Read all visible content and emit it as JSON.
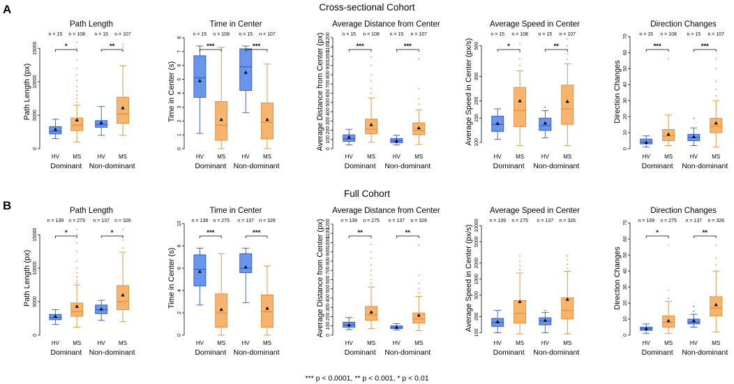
{
  "colors": {
    "hv_fill": "#6A95EC",
    "hv_stroke": "#2F56C4",
    "ms_fill": "#F7B46E",
    "ms_stroke": "#E48A2F",
    "text": "#000000"
  },
  "figure": {
    "rows": [
      {
        "letter": "A",
        "title": "Cross-sectional Cohort"
      },
      {
        "letter": "B",
        "title": "Full Cohort"
      }
    ],
    "footnote": "*** p < 0.0001, ** p < 0.001, * p < 0.01"
  },
  "chart_data": [
    {
      "type": "box",
      "row": 0,
      "col": 0,
      "title": "Path Length",
      "ylabel": "Path Length (px)",
      "scale": "linear",
      "ylim": [
        0,
        17000
      ],
      "yticks": [
        0,
        5000,
        10000,
        15000
      ],
      "ytick_labels": [
        "0",
        "5000",
        "10000",
        "15000"
      ],
      "groups": [
        "Dominant",
        "Non-dominant"
      ],
      "subgroups": [
        "HV",
        "MS"
      ],
      "n": [
        "n = 15",
        "n = 108",
        "n = 15",
        "n = 107"
      ],
      "significance": [
        "*",
        "**"
      ],
      "boxes": [
        {
          "min": 1500,
          "q1": 2200,
          "median": 2600,
          "q3": 3300,
          "max": 4400,
          "mean": 2900,
          "outliers": []
        },
        {
          "min": 1000,
          "q1": 2700,
          "median": 3500,
          "q3": 4600,
          "max": 6500,
          "mean": 4300,
          "outliers": [
            7000,
            7500,
            8000,
            8600,
            9300,
            10200,
            11000,
            12000,
            13300,
            15000,
            15900
          ]
        },
        {
          "min": 2000,
          "q1": 3200,
          "median": 3600,
          "q3": 4200,
          "max": 6300,
          "mean": 3900,
          "outliers": []
        },
        {
          "min": 2000,
          "q1": 3800,
          "median": 5200,
          "q3": 7700,
          "max": 12400,
          "mean": 6100,
          "outliers": [
            14600,
            15200,
            15600
          ]
        }
      ]
    },
    {
      "type": "box",
      "row": 0,
      "col": 1,
      "title": "Time in Center",
      "ylabel": "Time in Center (s)",
      "scale": "linear",
      "ylim": [
        0,
        8.2
      ],
      "yticks": [
        0,
        1,
        2,
        3,
        4,
        5,
        6,
        7,
        8
      ],
      "ytick_labels": [
        "0",
        "1",
        "2",
        "3",
        "4",
        "5",
        "6",
        "7",
        "8"
      ],
      "groups": [
        "Dominant",
        "Non-dominant"
      ],
      "subgroups": [
        "HV",
        "MS"
      ],
      "n": [
        "n = 15",
        "n = 108",
        "n = 15",
        "n = 107"
      ],
      "significance": [
        "***",
        "***"
      ],
      "boxes": [
        {
          "min": 1.1,
          "q1": 3.7,
          "median": 5.1,
          "q3": 6.7,
          "max": 7.4,
          "mean": 4.9,
          "outliers": []
        },
        {
          "min": 0,
          "q1": 0.6,
          "median": 1.7,
          "q3": 3.4,
          "max": 7.3,
          "mean": 2.1,
          "outliers": []
        },
        {
          "min": 2.6,
          "q1": 4.2,
          "median": 5.9,
          "q3": 7.2,
          "max": 7.4,
          "mean": 5.5,
          "outliers": []
        },
        {
          "min": 0,
          "q1": 0.7,
          "median": 1.9,
          "q3": 3.3,
          "max": 6.1,
          "mean": 2.1,
          "outliers": []
        }
      ]
    },
    {
      "type": "box",
      "row": 0,
      "col": 2,
      "title": "Average Distance from Center",
      "ylabel": "Average Distance from Center (px)",
      "scale": "linear",
      "ylim": [
        0,
        1230
      ],
      "yticks": [
        0,
        100,
        200,
        300,
        400,
        500,
        600,
        700,
        800,
        900,
        1000,
        1100,
        1200
      ],
      "ytick_labels": [
        "0",
        "100",
        "200",
        "300",
        "400",
        "500",
        "600",
        "700",
        "800",
        "900",
        "1000",
        "1100",
        "1200"
      ],
      "groups": [
        "Dominant",
        "Non-dominant"
      ],
      "subgroups": [
        "HV",
        "MS"
      ],
      "n": [
        "n = 15",
        "n = 108",
        "n = 15",
        "n = 107"
      ],
      "significance": [
        "***",
        "***"
      ],
      "boxes": [
        {
          "min": 40,
          "q1": 80,
          "median": 105,
          "q3": 150,
          "max": 210,
          "mean": 125,
          "outliers": []
        },
        {
          "min": 70,
          "q1": 160,
          "median": 210,
          "q3": 320,
          "max": 550,
          "mean": 260,
          "outliers": [
            600,
            650,
            730,
            800,
            900,
            990
          ]
        },
        {
          "min": 40,
          "q1": 65,
          "median": 85,
          "q3": 110,
          "max": 145,
          "mean": 85,
          "outliers": []
        },
        {
          "min": 45,
          "q1": 150,
          "median": 200,
          "q3": 280,
          "max": 420,
          "mean": 225,
          "outliers": [
            480,
            540,
            650,
            970
          ]
        }
      ]
    },
    {
      "type": "box",
      "row": 0,
      "col": 3,
      "title": "Average Speed in Center",
      "ylabel": "Average Speed in Center (px/s)",
      "scale": "log",
      "ylim": [
        90,
        600
      ],
      "yticks": [
        100,
        150,
        200,
        300,
        500
      ],
      "ytick_labels": [
        "100",
        "150",
        "200",
        "300",
        "500"
      ],
      "groups": [
        "Dominant",
        "Non-dominant"
      ],
      "subgroups": [
        "HV",
        "MS"
      ],
      "n": [
        "n = 15",
        "n = 108",
        "n = 15",
        "n = 107"
      ],
      "significance": [
        "*",
        "**"
      ],
      "boxes": [
        {
          "min": 105,
          "q1": 120,
          "median": 135,
          "q3": 155,
          "max": 175,
          "mean": 137,
          "outliers": []
        },
        {
          "min": 95,
          "q1": 130,
          "median": 170,
          "q3": 250,
          "max": 330,
          "mean": 200,
          "outliers": [
            360,
            400,
            450,
            520
          ]
        },
        {
          "min": 108,
          "q1": 122,
          "median": 132,
          "q3": 150,
          "max": 170,
          "mean": 138,
          "outliers": [
            180
          ]
        },
        {
          "min": 95,
          "q1": 135,
          "median": 175,
          "q3": 260,
          "max": 370,
          "mean": 198,
          "outliers": [
            400,
            440,
            500,
            560
          ]
        }
      ]
    },
    {
      "type": "box",
      "row": 0,
      "col": 4,
      "title": "Direction Changes",
      "ylabel": "Direction Changes",
      "scale": "linear",
      "ylim": [
        0,
        71
      ],
      "yticks": [
        0,
        10,
        20,
        30,
        40,
        50,
        60,
        70
      ],
      "ytick_labels": [
        "0",
        "10",
        "20",
        "30",
        "40",
        "50",
        "60",
        "70"
      ],
      "groups": [
        "Dominant",
        "Non-dominant"
      ],
      "subgroups": [
        "HV",
        "MS"
      ],
      "n": [
        "n = 15",
        "n = 108",
        "n = 15",
        "n = 107"
      ],
      "significance": [
        "***",
        "***"
      ],
      "boxes": [
        {
          "min": 1,
          "q1": 3,
          "median": 4,
          "q3": 6,
          "max": 8,
          "mean": 4,
          "outliers": []
        },
        {
          "min": 2,
          "q1": 5,
          "median": 8,
          "q3": 12,
          "max": 21,
          "mean": 9,
          "outliers": [
            56
          ]
        },
        {
          "min": 2,
          "q1": 5,
          "median": 7,
          "q3": 9,
          "max": 13,
          "mean": 7.5,
          "outliers": [
            19
          ]
        },
        {
          "min": 1,
          "q1": 10,
          "median": 14,
          "q3": 19,
          "max": 30,
          "mean": 16,
          "outliers": [
            33,
            37,
            42,
            50,
            56
          ]
        }
      ]
    },
    {
      "type": "box",
      "row": 1,
      "col": 0,
      "title": "Path Length",
      "ylabel": "Path Length (px)",
      "scale": "linear",
      "ylim": [
        0,
        17000
      ],
      "yticks": [
        0,
        5000,
        10000,
        15000
      ],
      "ytick_labels": [
        "0",
        "5000",
        "10000",
        "15000"
      ],
      "groups": [
        "Dominant",
        "Non-dominant"
      ],
      "subgroups": [
        "HV",
        "MS"
      ],
      "n": [
        "n = 139",
        "n = 275",
        "n = 137",
        "n = 326"
      ],
      "significance": [
        "*",
        "*"
      ],
      "boxes": [
        {
          "min": 1600,
          "q1": 2300,
          "median": 2600,
          "q3": 3100,
          "max": 3800,
          "mean": 2800,
          "outliers": []
        },
        {
          "min": 1200,
          "q1": 2800,
          "median": 3500,
          "q3": 4800,
          "max": 7500,
          "mean": 4300,
          "outliers": [
            7800,
            8200,
            8700,
            9300,
            10000,
            11000,
            12500,
            13800,
            15000,
            15800
          ]
        },
        {
          "min": 2200,
          "q1": 3200,
          "median": 3800,
          "q3": 4500,
          "max": 5200,
          "mean": 3900,
          "outliers": []
        },
        {
          "min": 2000,
          "q1": 3800,
          "median": 5000,
          "q3": 7400,
          "max": 12400,
          "mean": 6000,
          "outliers": [
            13000,
            14200,
            14800,
            15800
          ]
        }
      ]
    },
    {
      "type": "box",
      "row": 1,
      "col": 1,
      "title": "Time in Center",
      "ylabel": "Time in Center (s)",
      "scale": "linear",
      "ylim": [
        0,
        10.2
      ],
      "yticks": [
        0,
        2,
        4,
        6,
        8,
        10
      ],
      "ytick_labels": [
        "0",
        "2",
        "4",
        "6",
        "8",
        "10"
      ],
      "groups": [
        "Dominant",
        "Non-dominant"
      ],
      "subgroups": [
        "HV",
        "MS"
      ],
      "n": [
        "n = 139",
        "n = 275",
        "n = 137",
        "n = 326"
      ],
      "significance": [
        "***",
        "***"
      ],
      "boxes": [
        {
          "min": 2.7,
          "q1": 4.4,
          "median": 5.9,
          "q3": 7.2,
          "max": 7.8,
          "mean": 5.7,
          "outliers": []
        },
        {
          "min": 0,
          "q1": 0.7,
          "median": 2.0,
          "q3": 3.7,
          "max": 7.3,
          "mean": 2.3,
          "outliers": []
        },
        {
          "min": 2.9,
          "q1": 5.6,
          "median": 6.0,
          "q3": 7.3,
          "max": 7.8,
          "mean": 6.1,
          "outliers": []
        },
        {
          "min": 0,
          "q1": 0.7,
          "median": 2.1,
          "q3": 3.6,
          "max": 6.2,
          "mean": 2.4,
          "outliers": []
        }
      ]
    },
    {
      "type": "box",
      "row": 1,
      "col": 2,
      "title": "Average Distance from Center",
      "ylabel": "Average Distance from Center (px)",
      "scale": "linear",
      "ylim": [
        0,
        1230
      ],
      "yticks": [
        0,
        100,
        200,
        300,
        400,
        500,
        600,
        700,
        800,
        900,
        1000,
        1100,
        1200
      ],
      "ytick_labels": [
        "0",
        "100",
        "200",
        "300",
        "400",
        "500",
        "600",
        "700",
        "800",
        "900",
        "1000",
        "1100",
        "1200"
      ],
      "groups": [
        "Dominant",
        "Non-dominant"
      ],
      "subgroups": [
        "HV",
        "MS"
      ],
      "n": [
        "n = 139",
        "n = 275",
        "n = 137",
        "n = 326"
      ],
      "significance": [
        "**",
        "**"
      ],
      "boxes": [
        {
          "min": 60,
          "q1": 85,
          "median": 110,
          "q3": 140,
          "max": 190,
          "mean": 110,
          "outliers": []
        },
        {
          "min": 70,
          "q1": 160,
          "median": 220,
          "q3": 310,
          "max": 520,
          "mean": 250,
          "outliers": [
            560,
            600,
            650,
            700,
            760,
            830,
            900,
            980
          ]
        },
        {
          "min": 55,
          "q1": 70,
          "median": 85,
          "q3": 100,
          "max": 125,
          "mean": 85,
          "outliers": []
        },
        {
          "min": 50,
          "q1": 130,
          "median": 175,
          "q3": 240,
          "max": 420,
          "mean": 215,
          "outliers": [
            460,
            500,
            560,
            650,
            970
          ]
        }
      ]
    },
    {
      "type": "box",
      "row": 1,
      "col": 3,
      "title": "Average Speed in Center",
      "ylabel": "Average Speed in Center (px/s)",
      "scale": "log",
      "ylim": [
        90,
        12000
      ],
      "yticks": [
        100,
        200,
        500,
        1000,
        2000,
        5000,
        10000
      ],
      "ytick_labels": [
        "100",
        "200",
        "500",
        "1000",
        "2000",
        "5000",
        "10000"
      ],
      "groups": [
        "Dominant",
        "Non-dominant"
      ],
      "subgroups": [
        "HV",
        "MS"
      ],
      "n": [
        "n = 139",
        "n = 275",
        "n = 137",
        "n = 326"
      ],
      "significance": [],
      "boxes": [
        {
          "min": 100,
          "q1": 130,
          "median": 155,
          "q3": 185,
          "max": 260,
          "mean": 160,
          "outliers": []
        },
        {
          "min": 95,
          "q1": 150,
          "median": 230,
          "q3": 400,
          "max": 1300,
          "mean": 380,
          "outliers": [
            1500,
            1800,
            2200,
            2700
          ]
        },
        {
          "min": 100,
          "q1": 140,
          "median": 165,
          "q3": 190,
          "max": 240,
          "mean": 170,
          "outliers": [
            260
          ]
        },
        {
          "min": 95,
          "q1": 180,
          "median": 260,
          "q3": 450,
          "max": 1400,
          "mean": 420,
          "outliers": [
            1600,
            1900,
            2300,
            2700
          ]
        }
      ]
    },
    {
      "type": "box",
      "row": 1,
      "col": 4,
      "title": "Direction Changes",
      "ylabel": "Direction Changes",
      "scale": "linear",
      "ylim": [
        0,
        71
      ],
      "yticks": [
        0,
        10,
        20,
        30,
        40,
        50,
        60,
        70
      ],
      "ytick_labels": [
        "0",
        "10",
        "20",
        "30",
        "40",
        "50",
        "60",
        "70"
      ],
      "groups": [
        "Dominant",
        "Non-dominant"
      ],
      "subgroups": [
        "HV",
        "MS"
      ],
      "n": [
        "n = 139",
        "n = 275",
        "n = 137",
        "n = 326"
      ],
      "significance": [
        "*",
        "**"
      ],
      "boxes": [
        {
          "min": 1,
          "q1": 3,
          "median": 4,
          "q3": 5,
          "max": 7,
          "mean": 4,
          "outliers": []
        },
        {
          "min": 1,
          "q1": 5,
          "median": 8,
          "q3": 12,
          "max": 21,
          "mean": 9,
          "outliers": [
            23,
            28,
            56
          ]
        },
        {
          "min": 5,
          "q1": 7,
          "median": 8,
          "q3": 10,
          "max": 13,
          "mean": 9,
          "outliers": [
            15,
            18
          ]
        },
        {
          "min": 2,
          "q1": 12,
          "median": 17,
          "q3": 24,
          "max": 40,
          "mean": 19,
          "outliers": [
            44,
            48,
            56
          ]
        }
      ]
    }
  ]
}
